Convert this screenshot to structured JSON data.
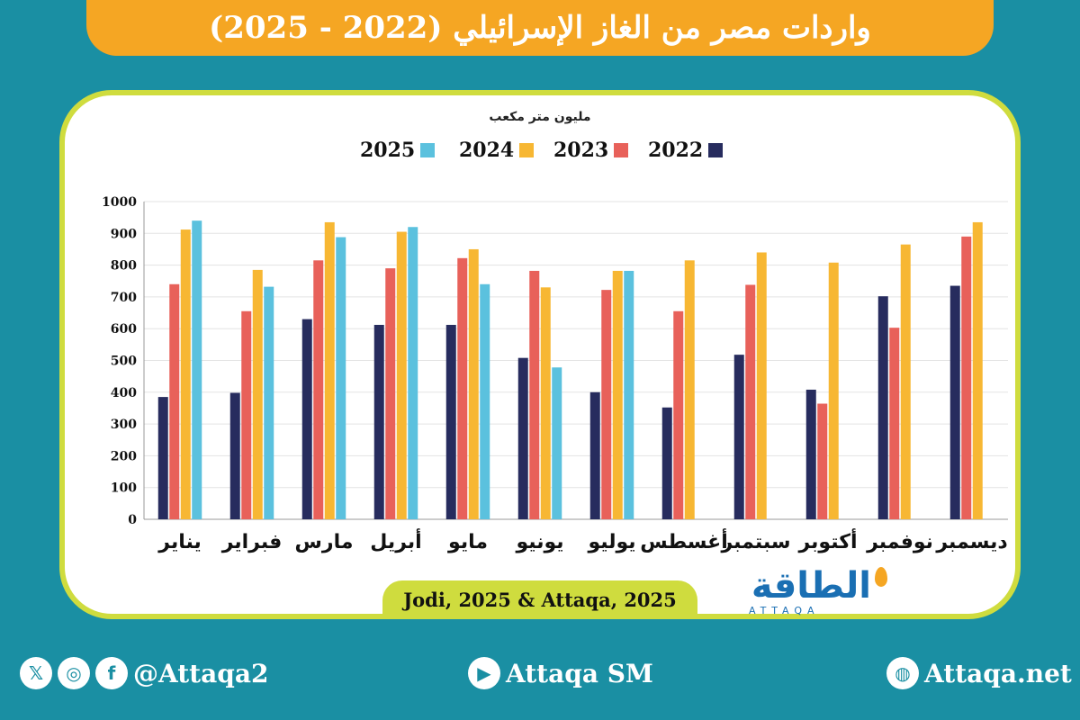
{
  "title": "واردات مصر من الغاز الإسرائيلي (2022 - 2025)",
  "source": "Jodi, 2025 & Attaqa, 2025",
  "logo": {
    "arabic": "الطاقة",
    "english": "ATTAQA"
  },
  "footer": {
    "social_handle": "@Attaqa2",
    "youtube": "Attaqa SM",
    "website": "Attaqa.net",
    "icons": [
      "x-icon",
      "instagram-icon",
      "facebook-icon",
      "youtube-icon",
      "globe-icon"
    ]
  },
  "colors": {
    "2022": "#272c5e",
    "2023": "#e8615a",
    "2024": "#f7b733",
    "2025": "#5bc1de",
    "accent_orange": "#f5a623",
    "accent_lime": "#cfdc3e",
    "background": "#1a8fa3"
  },
  "chart_data": {
    "type": "bar",
    "title": "",
    "ylabel": "مليون متر مكعب",
    "xlabel": "",
    "ylim": [
      0,
      1000
    ],
    "yticks": [
      0,
      100,
      200,
      300,
      400,
      500,
      600,
      700,
      800,
      900,
      1000
    ],
    "grid": true,
    "legend_placement": "top",
    "categories": [
      "يناير",
      "فبراير",
      "مارس",
      "أبريل",
      "مايو",
      "يونيو",
      "يوليو",
      "أغسطس",
      "سبتمبر",
      "أكتوبر",
      "نوفمبر",
      "ديسمبر"
    ],
    "series": [
      {
        "name": "2022",
        "values": [
          385,
          398,
          630,
          612,
          612,
          508,
          400,
          352,
          518,
          408,
          702,
          735
        ]
      },
      {
        "name": "2023",
        "values": [
          740,
          655,
          815,
          790,
          822,
          782,
          722,
          655,
          738,
          364,
          603,
          890
        ]
      },
      {
        "name": "2024",
        "values": [
          912,
          785,
          935,
          905,
          850,
          730,
          782,
          815,
          840,
          808,
          865,
          935
        ]
      },
      {
        "name": "2025",
        "values": [
          940,
          732,
          888,
          920,
          740,
          478,
          782,
          null,
          null,
          null,
          null,
          null
        ]
      }
    ]
  }
}
